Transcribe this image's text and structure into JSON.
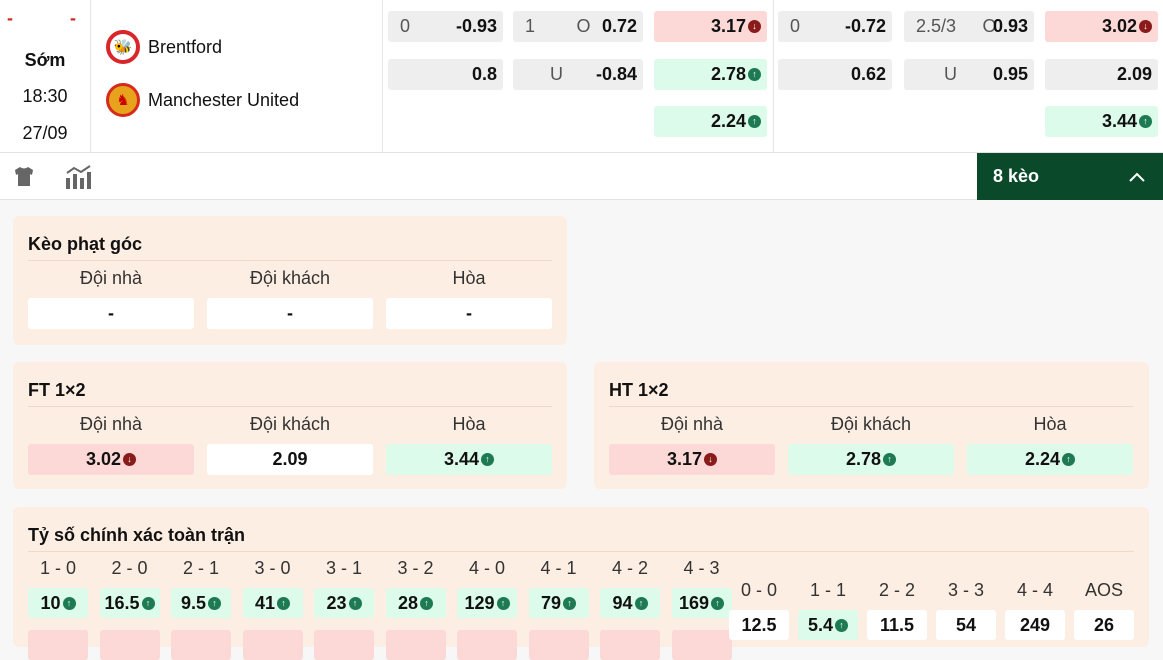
{
  "match": {
    "status": "Sớm",
    "time": "18:30",
    "date": "27/09",
    "score_home": "-",
    "score_away": "-",
    "home": "Brentford",
    "away": "Manchester United"
  },
  "odds": [
    {
      "cells": [
        {
          "l": "0",
          "v": "-0.93",
          "c": "gray"
        },
        {
          "l": "1",
          "m": "O",
          "v": "0.72",
          "c": "gray"
        },
        {
          "v": "3.17",
          "c": "red",
          "t": "down"
        },
        {
          "l": "0",
          "v": "-0.72",
          "c": "gray"
        },
        {
          "l": "2.5/3",
          "m": "O",
          "v": "0.93",
          "c": "gray"
        },
        {
          "v": "3.02",
          "c": "red",
          "t": "down"
        }
      ]
    },
    {
      "cells": [
        {
          "v": "0.8",
          "c": "gray"
        },
        {
          "m": "U",
          "v": "-0.84",
          "c": "gray"
        },
        {
          "v": "2.78",
          "c": "green",
          "t": "up"
        },
        {
          "v": "0.62",
          "c": "gray"
        },
        {
          "m": "U",
          "v": "0.95",
          "c": "gray"
        },
        {
          "v": "2.09",
          "c": "gray"
        }
      ]
    },
    {
      "cells": [
        null,
        null,
        {
          "v": "2.24",
          "c": "green",
          "t": "up"
        },
        null,
        null,
        {
          "v": "3.44",
          "c": "green",
          "t": "up"
        }
      ]
    }
  ],
  "toolbar": {
    "more_label": "8 kèo",
    "icons": [
      "shirt-icon",
      "stats-chart-icon",
      "chevron-up-icon"
    ]
  },
  "corner": {
    "title": "Kèo phạt góc",
    "headers": [
      "Đội nhà",
      "Đội khách",
      "Hòa"
    ],
    "values": [
      {
        "v": "-",
        "c": "white"
      },
      {
        "v": "-",
        "c": "white"
      },
      {
        "v": "-",
        "c": "white"
      }
    ]
  },
  "ft": {
    "title": "FT 1×2",
    "headers": [
      "Đội nhà",
      "Đội khách",
      "Hòa"
    ],
    "values": [
      {
        "v": "3.02",
        "c": "red",
        "t": "down"
      },
      {
        "v": "2.09",
        "c": "white"
      },
      {
        "v": "3.44",
        "c": "green",
        "t": "up"
      }
    ]
  },
  "ht": {
    "title": "HT 1×2",
    "headers": [
      "Đội nhà",
      "Đội khách",
      "Hòa"
    ],
    "values": [
      {
        "v": "3.17",
        "c": "red",
        "t": "down"
      },
      {
        "v": "2.78",
        "c": "green",
        "t": "up"
      },
      {
        "v": "2.24",
        "c": "green",
        "t": "up"
      }
    ]
  },
  "exact": {
    "title": "Tỷ số chính xác toàn trận",
    "home": [
      {
        "s": "1 - 0",
        "v": "10",
        "t": "up"
      },
      {
        "s": "2 - 0",
        "v": "16.5",
        "t": "up"
      },
      {
        "s": "2 - 1",
        "v": "9.5",
        "t": "up"
      },
      {
        "s": "3 - 0",
        "v": "41",
        "t": "up"
      },
      {
        "s": "3 - 1",
        "v": "23",
        "t": "up"
      },
      {
        "s": "3 - 2",
        "v": "28",
        "t": "up"
      },
      {
        "s": "4 - 0",
        "v": "129",
        "t": "up"
      },
      {
        "s": "4 - 1",
        "v": "79",
        "t": "up"
      },
      {
        "s": "4 - 2",
        "v": "94",
        "t": "up"
      },
      {
        "s": "4 - 3",
        "v": "169",
        "t": "up"
      }
    ],
    "draw": [
      {
        "s": "0 - 0",
        "v": "12.5",
        "c": "white"
      },
      {
        "s": "1 - 1",
        "v": "5.4",
        "t": "up",
        "c": "green"
      },
      {
        "s": "2 - 2",
        "v": "11.5",
        "c": "white"
      },
      {
        "s": "3 - 3",
        "v": "54",
        "c": "white"
      },
      {
        "s": "4 - 4",
        "v": "249",
        "c": "white"
      },
      {
        "s": "AOS",
        "v": "26",
        "c": "white"
      }
    ]
  },
  "colors": {
    "accent": "#0a4a2b",
    "up": "#1d7a52",
    "down": "#8a1b1b",
    "panel": "#fdeee3"
  }
}
